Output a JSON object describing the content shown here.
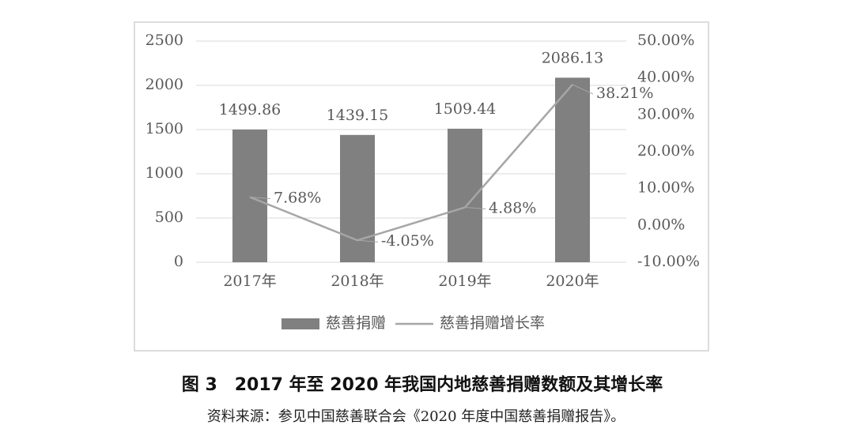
{
  "chart_data": {
    "type": "bar",
    "categories": [
      "2017年",
      "2018年",
      "2019年",
      "2020年"
    ],
    "series": [
      {
        "name": "慈善捐赠",
        "type": "bar",
        "color": "#808080",
        "values": [
          1499.86,
          1439.15,
          1509.44,
          2086.13
        ]
      },
      {
        "name": "慈善捐赠增长率",
        "type": "line",
        "axis": "y2",
        "color": "#a6a6a6",
        "values": [
          7.68,
          -4.05,
          4.88,
          38.21
        ],
        "value_labels": [
          "7.68%",
          "-4.05%",
          "4.88%",
          "38.21%"
        ]
      }
    ],
    "ylim": [
      0,
      2500
    ],
    "yticks": [
      0,
      500,
      1000,
      1500,
      2000,
      2500
    ],
    "y2lim": [
      -10,
      50
    ],
    "y2ticks": [
      {
        "value": -10,
        "label": "-10.00%"
      },
      {
        "value": 0,
        "label": "0.00%"
      },
      {
        "value": 10,
        "label": "10.00%"
      },
      {
        "value": 20,
        "label": "20.00%"
      },
      {
        "value": 30,
        "label": "30.00%"
      },
      {
        "value": 40,
        "label": "40.00%"
      },
      {
        "value": 50,
        "label": "50.00%"
      }
    ],
    "grid": true,
    "legend": "bottom"
  },
  "caption": "图 3　2017 年至 2020 年我国内地慈善捐赠数额及其增长率",
  "source": "资料来源：参见中国慈善联合会《2020 年度中国慈善捐赠报告》。"
}
